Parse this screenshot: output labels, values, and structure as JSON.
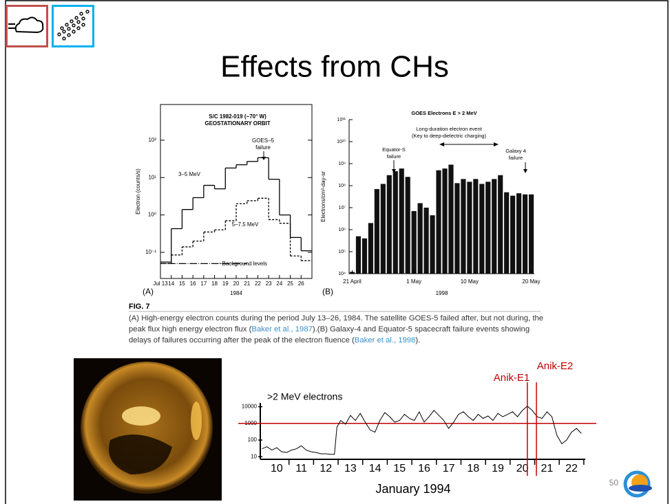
{
  "slide": {
    "title": "Effects from CHs",
    "page_number": "50"
  },
  "figure": {
    "label": "FIG. 7",
    "caption": [
      "(A) High-energy electron counts during the period July 13–26, 1984. The satellite GOES-5 failed after, but not during, the peak flux high energy electron flux (",
      "Baker et al., 1987",
      ").(B) Galaxy-4 and Equator-5 spacecraft failure events showing delays of failures occurring after the peak of the electron fluence (",
      "Baker et al., 1998",
      ")."
    ]
  },
  "chart_data": [
    {
      "type": "line",
      "step": true,
      "panel": "(A)",
      "annotations": [
        [
          "S/C 1982-019 (~70° W)",
          "GEOSTATIONARY ORBIT"
        ],
        [
          "GOES–5",
          "failure"
        ]
      ],
      "categories": [
        "Jul 13",
        "14",
        "15",
        "16",
        "17",
        "18",
        "19",
        "20",
        "21",
        "22",
        "23",
        "24",
        "25",
        "26"
      ],
      "xlabel": "1984",
      "ylabel": "Electron (counts/s)",
      "log_y": true,
      "ylim": [
        0.02,
        900
      ],
      "yticks": [
        {
          "value": 0.1,
          "label": "10⁻¹"
        },
        {
          "value": 1,
          "label": "10⁰"
        },
        {
          "value": 10,
          "label": "10¹"
        },
        {
          "value": 100,
          "label": "10²"
        }
      ],
      "series": [
        {
          "name": "3–5 MeV",
          "color": "#000000",
          "dash": "solid",
          "values": [
            0.055,
            0.43,
            1.4,
            2.9,
            6.2,
            5,
            18,
            22,
            27,
            34,
            9,
            1,
            0.25,
            0.11
          ]
        },
        {
          "name": "5–7.5 MeV",
          "color": "#000000",
          "dash": "dashed",
          "values": [
            0.05,
            0.085,
            0.14,
            0.2,
            0.35,
            0.4,
            0.7,
            2,
            2.4,
            2.8,
            0.75,
            0.6,
            0.08,
            0.06
          ]
        },
        {
          "name": "~Background levels",
          "color": "#000000",
          "dash": "dashdot",
          "values": [
            0.05,
            0.05,
            0.05,
            0.05,
            0.05,
            0.05,
            0.05,
            0.05,
            null,
            null,
            null,
            null,
            null,
            null
          ]
        }
      ]
    },
    {
      "type": "bar",
      "title": "GOES Electrons E > 2 MeV",
      "panel": "(B)",
      "annotations": [
        [
          "Long-duration electron event",
          "(Key to deep-dielectric charging)"
        ],
        [
          "Equator-S",
          "failure"
        ],
        [
          "Galaxy 4",
          "failure"
        ]
      ],
      "categories": [
        "21 April",
        null,
        null,
        null,
        null,
        null,
        null,
        null,
        null,
        null,
        "1 May",
        null,
        null,
        null,
        null,
        null,
        null,
        null,
        null,
        "10 May",
        null,
        null,
        null,
        null,
        null,
        null,
        null,
        null,
        null,
        "20 May"
      ],
      "values": [
        12000,
        500000,
        400000,
        2000000,
        70000000,
        120000000,
        300000000,
        450000000,
        600000000,
        250000000,
        7000000,
        16000000,
        10000000,
        4500000,
        500000000,
        600000000,
        900000000,
        130000000,
        200000000,
        150000000,
        200000000,
        120000000,
        150000000,
        200000000,
        300000000,
        50000000,
        35000000,
        45000000,
        40000000,
        40000000
      ],
      "color": "#111111",
      "log_y": true,
      "ylim": [
        10000,
        100000000000
      ],
      "yticks": [
        {
          "value": 10000,
          "label": "10⁴"
        },
        {
          "value": 100000,
          "label": "10⁵"
        },
        {
          "value": 1000000,
          "label": "10⁶"
        },
        {
          "value": 10000000,
          "label": "10⁷"
        },
        {
          "value": 100000000,
          "label": "10⁸"
        },
        {
          "value": 1000000000,
          "label": "10⁹"
        },
        {
          "value": 10000000000,
          "label": "10¹⁰"
        },
        {
          "value": 100000000000,
          "label": "10¹¹"
        }
      ],
      "xlabel": "1998",
      "ylabel": "Electrons/cm²-day-sr"
    },
    {
      "type": "line",
      "log_y": true,
      "x": [
        9.4,
        9.6,
        9.8,
        10,
        10.2,
        10.4,
        10.6,
        10.8,
        11,
        11.2,
        11.4,
        11.6,
        11.8,
        12,
        12.2,
        12.35,
        12.45,
        12.6,
        12.8,
        13,
        13.2,
        13.4,
        13.6,
        13.8,
        14,
        14.2,
        14.4,
        14.6,
        14.8,
        15,
        15.2,
        15.4,
        15.6,
        15.8,
        16,
        16.2,
        16.4,
        16.6,
        16.8,
        17,
        17.2,
        17.4,
        17.6,
        17.8,
        18,
        18.2,
        18.4,
        18.6,
        18.8,
        19,
        19.2,
        19.4,
        19.6,
        19.8,
        20,
        20.2,
        20.4,
        20.6,
        20.8,
        21,
        21.2,
        21.4,
        21.6,
        21.8,
        22,
        22.2,
        22.4
      ],
      "series": [
        {
          "name": ">2 MeV electrons",
          "color": "#000000",
          "values": [
            30,
            40,
            25,
            35,
            20,
            18,
            25,
            30,
            45,
            25,
            20,
            18,
            15,
            15,
            14,
            14,
            600,
            1500,
            900,
            3000,
            1500,
            4000,
            1200,
            400,
            300,
            1500,
            4500,
            2500,
            1200,
            1500,
            3500,
            2000,
            1500,
            5000,
            1200,
            2500,
            6000,
            3000,
            1500,
            500,
            1200,
            3500,
            5000,
            2500,
            1500,
            3500,
            2000,
            2800,
            1500,
            4000,
            2500,
            3500,
            5000,
            2500,
            6000,
            11000,
            6000,
            2500,
            2000,
            5000,
            2500,
            200,
            60,
            100,
            300,
            500,
            250
          ]
        }
      ],
      "xlim": [
        9.33,
        22.56
      ],
      "xticks": [
        10,
        11,
        12,
        13,
        14,
        15,
        16,
        17,
        18,
        19,
        20,
        21,
        22
      ],
      "ylim": [
        7,
        30000
      ],
      "yticks": [
        10,
        100,
        1000,
        10000
      ],
      "xlabel": "January 1994",
      "reference_line": {
        "value": 1000,
        "color": "#c00000"
      },
      "events": [
        {
          "label": "Anik-E1",
          "x": 20.2,
          "color": "#c00000"
        },
        {
          "label": "Anik-E2",
          "x": 20.57,
          "color": "#c00000"
        }
      ]
    }
  ]
}
